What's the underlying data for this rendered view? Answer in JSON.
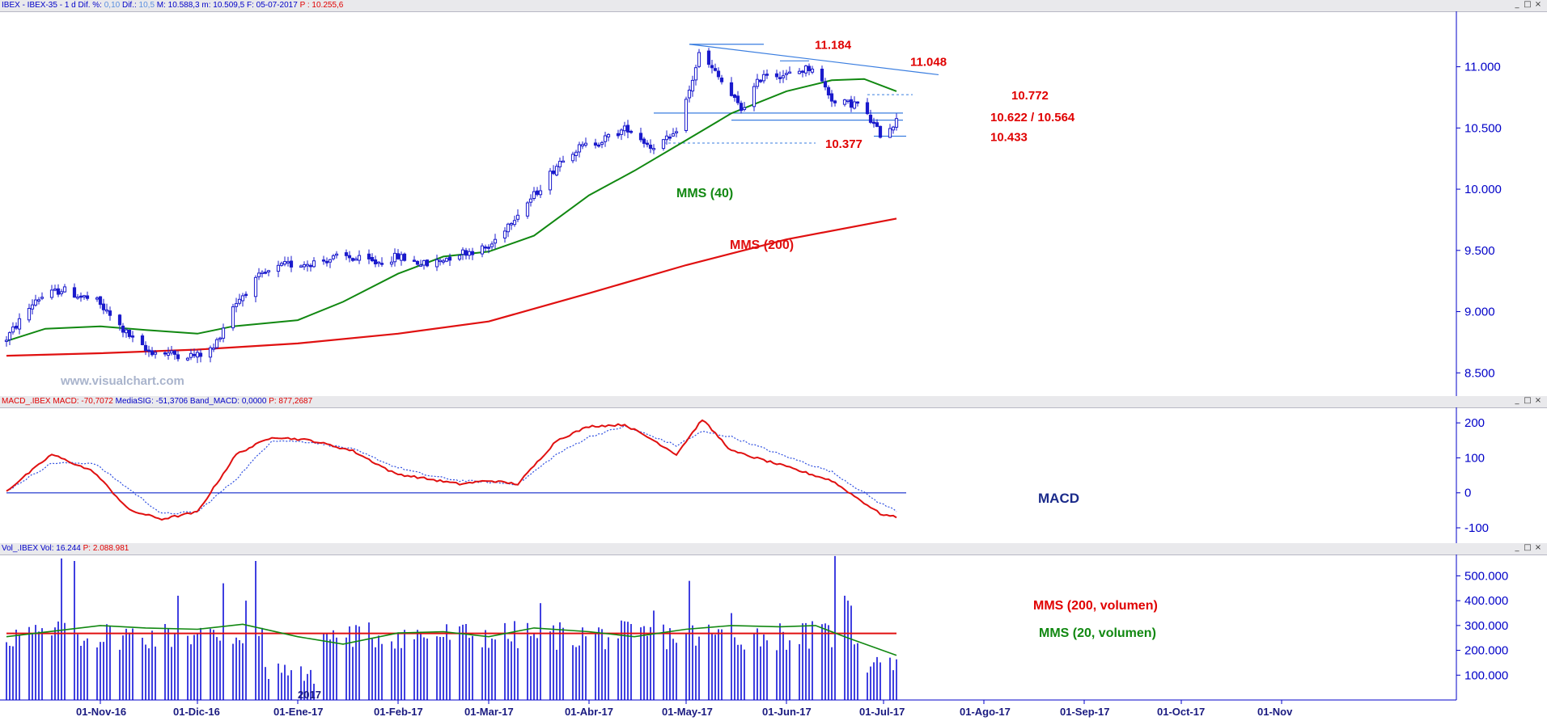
{
  "colors": {
    "candle": "#1a1acc",
    "sma40": "#118811",
    "sma200": "#e01010",
    "annot_red": "#e00000",
    "trend": "#3a7ee0",
    "axis": "#0000c8",
    "panel_bg": "#ffffff",
    "title_bg": "#e9e9ec"
  },
  "window_buttons": [
    "_",
    "□",
    "×"
  ],
  "price_panel": {
    "header": {
      "symbol": "IBEX - IBEX-35 -",
      "period": "1 d",
      "dif_pct_label": "Dif. %:",
      "dif_pct_value": "0,10",
      "dif_label": "Dif.:",
      "dif_value": "10,5",
      "high": "M: 10.588,3",
      "low": "m: 10.509,5",
      "date": "F: 05-07-2017",
      "last": "P : 10.255,6"
    },
    "watermark": "www.visualchart.com"
  },
  "macd_panel": {
    "header": {
      "name": "MACD_.IBEX",
      "macd": "MACD: -70,7072",
      "signal": "MediaSIG: -51,3706",
      "band": "Band_MACD: 0,0000",
      "last": "P: 877,2687"
    }
  },
  "volume_panel": {
    "header": {
      "name": "Vol_.IBEX",
      "vol": "Vol: 16.244",
      "last": "P: 2.088.981"
    }
  },
  "x_axis": {
    "labels": [
      "01-Nov-16",
      "01-Dic-16",
      "01-Ene-17",
      "01-Feb-17",
      "01-Mar-17",
      "01-Abr-17",
      "01-May-17",
      "01-Jun-17",
      "01-Jul-17",
      "01-Ago-17",
      "01-Sep-17",
      "01-Oct-17",
      "01-Nov"
    ],
    "year_marker": "2017"
  },
  "chart_data": [
    {
      "type": "candlestick",
      "ylim": [
        8350,
        11400
      ],
      "y_ticks": [
        "8.500",
        "9.000",
        "9.500",
        "10.000",
        "10.500",
        "11.000"
      ],
      "annotations": [
        {
          "text": "11.184",
          "x": "2017-05-02",
          "y": 11184
        },
        {
          "text": "11.048",
          "x": "2017-05-29",
          "y": 11048
        },
        {
          "text": "10.772",
          "x": "2017-06-28",
          "y": 10772
        },
        {
          "text": "10.622 / 10.564",
          "x": "2017-06-28",
          "y": 10593
        },
        {
          "text": "10.433",
          "x": "2017-06-28",
          "y": 10433
        },
        {
          "text": "10.377",
          "x": "2017-04-27",
          "y": 10377
        }
      ],
      "series_labels": [
        {
          "text": "MMS (40)",
          "x": "2017-04-08",
          "y": 9900
        },
        {
          "text": "MMS (200)",
          "x": "2017-04-12",
          "y": 9490
        }
      ],
      "sma40": [
        [
          "2016-10-03",
          8760
        ],
        [
          "2016-10-15",
          8860
        ],
        [
          "2016-11-01",
          8880
        ],
        [
          "2016-11-15",
          8850
        ],
        [
          "2016-12-01",
          8820
        ],
        [
          "2016-12-12",
          8880
        ],
        [
          "2017-01-01",
          8930
        ],
        [
          "2017-01-15",
          9080
        ],
        [
          "2017-02-01",
          9310
        ],
        [
          "2017-02-15",
          9450
        ],
        [
          "2017-03-01",
          9490
        ],
        [
          "2017-03-15",
          9620
        ],
        [
          "2017-04-01",
          9950
        ],
        [
          "2017-04-15",
          10150
        ],
        [
          "2017-05-01",
          10400
        ],
        [
          "2017-05-15",
          10620
        ],
        [
          "2017-06-01",
          10800
        ],
        [
          "2017-06-15",
          10890
        ],
        [
          "2017-06-25",
          10900
        ],
        [
          "2017-07-05",
          10800
        ]
      ],
      "sma200": [
        [
          "2016-10-03",
          8640
        ],
        [
          "2016-11-01",
          8660
        ],
        [
          "2016-12-01",
          8690
        ],
        [
          "2017-01-01",
          8740
        ],
        [
          "2017-02-01",
          8820
        ],
        [
          "2017-03-01",
          8920
        ],
        [
          "2017-04-01",
          9150
        ],
        [
          "2017-05-01",
          9380
        ],
        [
          "2017-06-01",
          9590
        ],
        [
          "2017-07-05",
          9760
        ]
      ]
    },
    {
      "type": "line",
      "ylim": [
        -130,
        235
      ],
      "y_ticks": [
        "200",
        "100",
        "0",
        "-100"
      ],
      "label": "MACD",
      "series": [
        {
          "values": [
            [
              "2016-10-03",
              5
            ],
            [
              "2016-10-17",
              110
            ],
            [
              "2016-10-30",
              60
            ],
            [
              "2016-11-10",
              -50
            ],
            [
              "2016-11-20",
              -75
            ],
            [
              "2016-12-01",
              -55
            ],
            [
              "2016-12-13",
              110
            ],
            [
              "2016-12-24",
              160
            ],
            [
              "2017-01-05",
              150
            ],
            [
              "2017-01-18",
              120
            ],
            [
              "2017-01-31",
              55
            ],
            [
              "2017-02-10",
              40
            ],
            [
              "2017-02-20",
              25
            ],
            [
              "2017-03-01",
              35
            ],
            [
              "2017-03-10",
              25
            ],
            [
              "2017-03-22",
              150
            ],
            [
              "2017-04-01",
              190
            ],
            [
              "2017-04-12",
              195
            ],
            [
              "2017-04-21",
              150
            ],
            [
              "2017-04-28",
              110
            ],
            [
              "2017-05-06",
              210
            ],
            [
              "2017-05-15",
              120
            ],
            [
              "2017-05-30",
              80
            ],
            [
              "2017-06-15",
              35
            ],
            [
              "2017-06-30",
              -60
            ],
            [
              "2017-07-05",
              -70
            ]
          ]
        },
        {
          "values": [
            [
              "2016-10-03",
              5
            ],
            [
              "2016-10-17",
              85
            ],
            [
              "2016-10-30",
              85
            ],
            [
              "2016-11-10",
              10
            ],
            [
              "2016-11-20",
              -60
            ],
            [
              "2016-12-01",
              -55
            ],
            [
              "2016-12-13",
              40
            ],
            [
              "2016-12-24",
              150
            ],
            [
              "2017-01-05",
              145
            ],
            [
              "2017-01-18",
              125
            ],
            [
              "2017-01-31",
              75
            ],
            [
              "2017-02-10",
              50
            ],
            [
              "2017-02-20",
              35
            ],
            [
              "2017-03-01",
              30
            ],
            [
              "2017-03-10",
              25
            ],
            [
              "2017-03-22",
              110
            ],
            [
              "2017-04-01",
              160
            ],
            [
              "2017-04-12",
              190
            ],
            [
              "2017-04-21",
              160
            ],
            [
              "2017-04-28",
              135
            ],
            [
              "2017-05-06",
              175
            ],
            [
              "2017-05-15",
              160
            ],
            [
              "2017-05-30",
              110
            ],
            [
              "2017-06-15",
              60
            ],
            [
              "2017-06-30",
              -30
            ],
            [
              "2017-07-05",
              -51
            ]
          ]
        }
      ],
      "zero_line": 0
    },
    {
      "type": "bar",
      "ylim": [
        0,
        560000
      ],
      "y_ticks": [
        "500.000",
        "400.000",
        "300.000",
        "200.000",
        "100.000"
      ],
      "series_labels": [
        "MMS (200, volumen)",
        "MMS (20, volumen)"
      ],
      "sma200_level": 268000,
      "sma20": [
        [
          "2016-10-03",
          255000
        ],
        [
          "2016-11-01",
          300000
        ],
        [
          "2016-11-15",
          290000
        ],
        [
          "2016-12-01",
          285000
        ],
        [
          "2016-12-15",
          305000
        ],
        [
          "2017-01-01",
          255000
        ],
        [
          "2017-01-15",
          225000
        ],
        [
          "2017-02-01",
          270000
        ],
        [
          "2017-02-15",
          275000
        ],
        [
          "2017-03-01",
          255000
        ],
        [
          "2017-03-15",
          290000
        ],
        [
          "2017-04-01",
          275000
        ],
        [
          "2017-04-15",
          255000
        ],
        [
          "2017-05-01",
          285000
        ],
        [
          "2017-05-15",
          300000
        ],
        [
          "2017-05-30",
          295000
        ],
        [
          "2017-06-10",
          300000
        ],
        [
          "2017-06-20",
          250000
        ],
        [
          "2017-07-05",
          180000
        ]
      ]
    }
  ]
}
